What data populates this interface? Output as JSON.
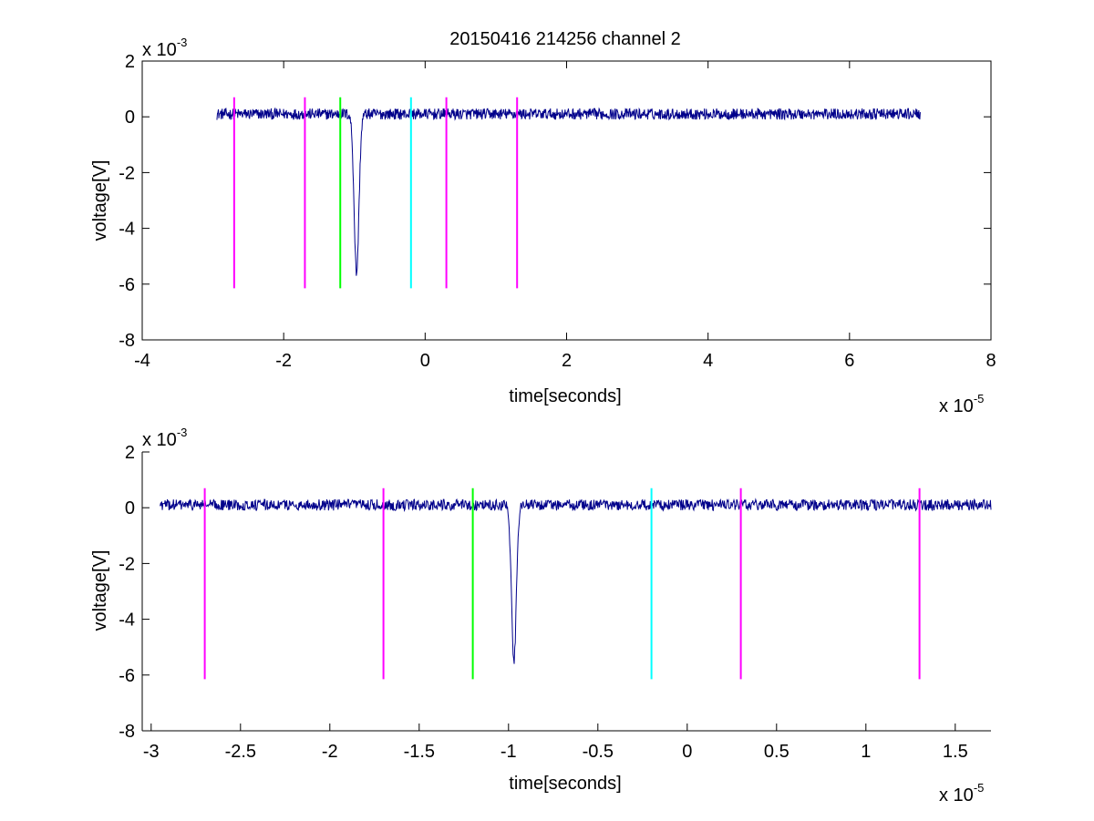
{
  "colors": {
    "signal": "#00008b",
    "magenta": "#ff00ff",
    "green": "#00ff00",
    "cyan": "#00ffff",
    "axes": "#000000",
    "background": "#ffffff"
  },
  "chart_data": [
    {
      "type": "line",
      "title": "20150416 214256 channel 2",
      "xlabel": "time[seconds]",
      "ylabel": "voltage[V]",
      "x_multiplier": {
        "base": "x 10",
        "exponent": "-5"
      },
      "y_multiplier": {
        "base": "x 10",
        "exponent": "-3"
      },
      "xlim": [
        -4,
        8
      ],
      "ylim": [
        -8,
        2
      ],
      "x_ticks": [
        -4,
        -2,
        0,
        2,
        4,
        6,
        8
      ],
      "x_tick_labels": [
        "-4",
        "-2",
        "0",
        "2",
        "4",
        "6",
        "8"
      ],
      "y_ticks": [
        -8,
        -6,
        -4,
        -2,
        0,
        2
      ],
      "y_tick_labels": [
        "-8",
        "-6",
        "-4",
        "-2",
        "0",
        "2"
      ],
      "grid": false,
      "series": [
        {
          "color": "signal",
          "x_range": [
            -2.95,
            7.0
          ],
          "baseline": 0.1,
          "noise": 0.2,
          "dip": {
            "x": -0.97,
            "y": -5.6
          }
        }
      ],
      "markers": [
        {
          "x": -2.7,
          "y_top": 0.7,
          "y_bottom": -6.15,
          "color": "magenta"
        },
        {
          "x": -1.7,
          "y_top": 0.7,
          "y_bottom": -6.15,
          "color": "magenta"
        },
        {
          "x": -1.2,
          "y_top": 0.7,
          "y_bottom": -6.15,
          "color": "green"
        },
        {
          "x": -0.2,
          "y_top": 0.7,
          "y_bottom": -6.15,
          "color": "cyan"
        },
        {
          "x": 0.3,
          "y_top": 0.7,
          "y_bottom": -6.15,
          "color": "magenta"
        },
        {
          "x": 1.3,
          "y_top": 0.7,
          "y_bottom": -6.15,
          "color": "magenta"
        }
      ]
    },
    {
      "type": "line",
      "title": "",
      "xlabel": "time[seconds]",
      "ylabel": "voltage[V]",
      "x_multiplier": {
        "base": "x 10",
        "exponent": "-5"
      },
      "y_multiplier": {
        "base": "x 10",
        "exponent": "-3"
      },
      "xlim": [
        -3.05,
        1.7
      ],
      "ylim": [
        -8,
        2
      ],
      "x_ticks": [
        -3,
        -2.5,
        -2,
        -1.5,
        -1,
        -0.5,
        0,
        0.5,
        1,
        1.5
      ],
      "x_tick_labels": [
        "-3",
        "-2.5",
        "-2",
        "-1.5",
        "-1",
        "-0.5",
        "0",
        "0.5",
        "1",
        "1.5"
      ],
      "y_ticks": [
        -8,
        -6,
        -4,
        -2,
        0,
        2
      ],
      "y_tick_labels": [
        "-8",
        "-6",
        "-4",
        "-2",
        "0",
        "2"
      ],
      "grid": false,
      "series": [
        {
          "color": "signal",
          "x_range": [
            -2.95,
            1.7
          ],
          "baseline": 0.1,
          "noise": 0.2,
          "dip": {
            "x": -0.97,
            "y": -5.55
          }
        }
      ],
      "markers": [
        {
          "x": -2.7,
          "y_top": 0.7,
          "y_bottom": -6.15,
          "color": "magenta"
        },
        {
          "x": -1.7,
          "y_top": 0.7,
          "y_bottom": -6.15,
          "color": "magenta"
        },
        {
          "x": -1.2,
          "y_top": 0.7,
          "y_bottom": -6.15,
          "color": "green"
        },
        {
          "x": -0.2,
          "y_top": 0.7,
          "y_bottom": -6.15,
          "color": "cyan"
        },
        {
          "x": 0.3,
          "y_top": 0.7,
          "y_bottom": -6.15,
          "color": "magenta"
        },
        {
          "x": 1.3,
          "y_top": 0.7,
          "y_bottom": -6.15,
          "color": "magenta"
        }
      ]
    }
  ]
}
